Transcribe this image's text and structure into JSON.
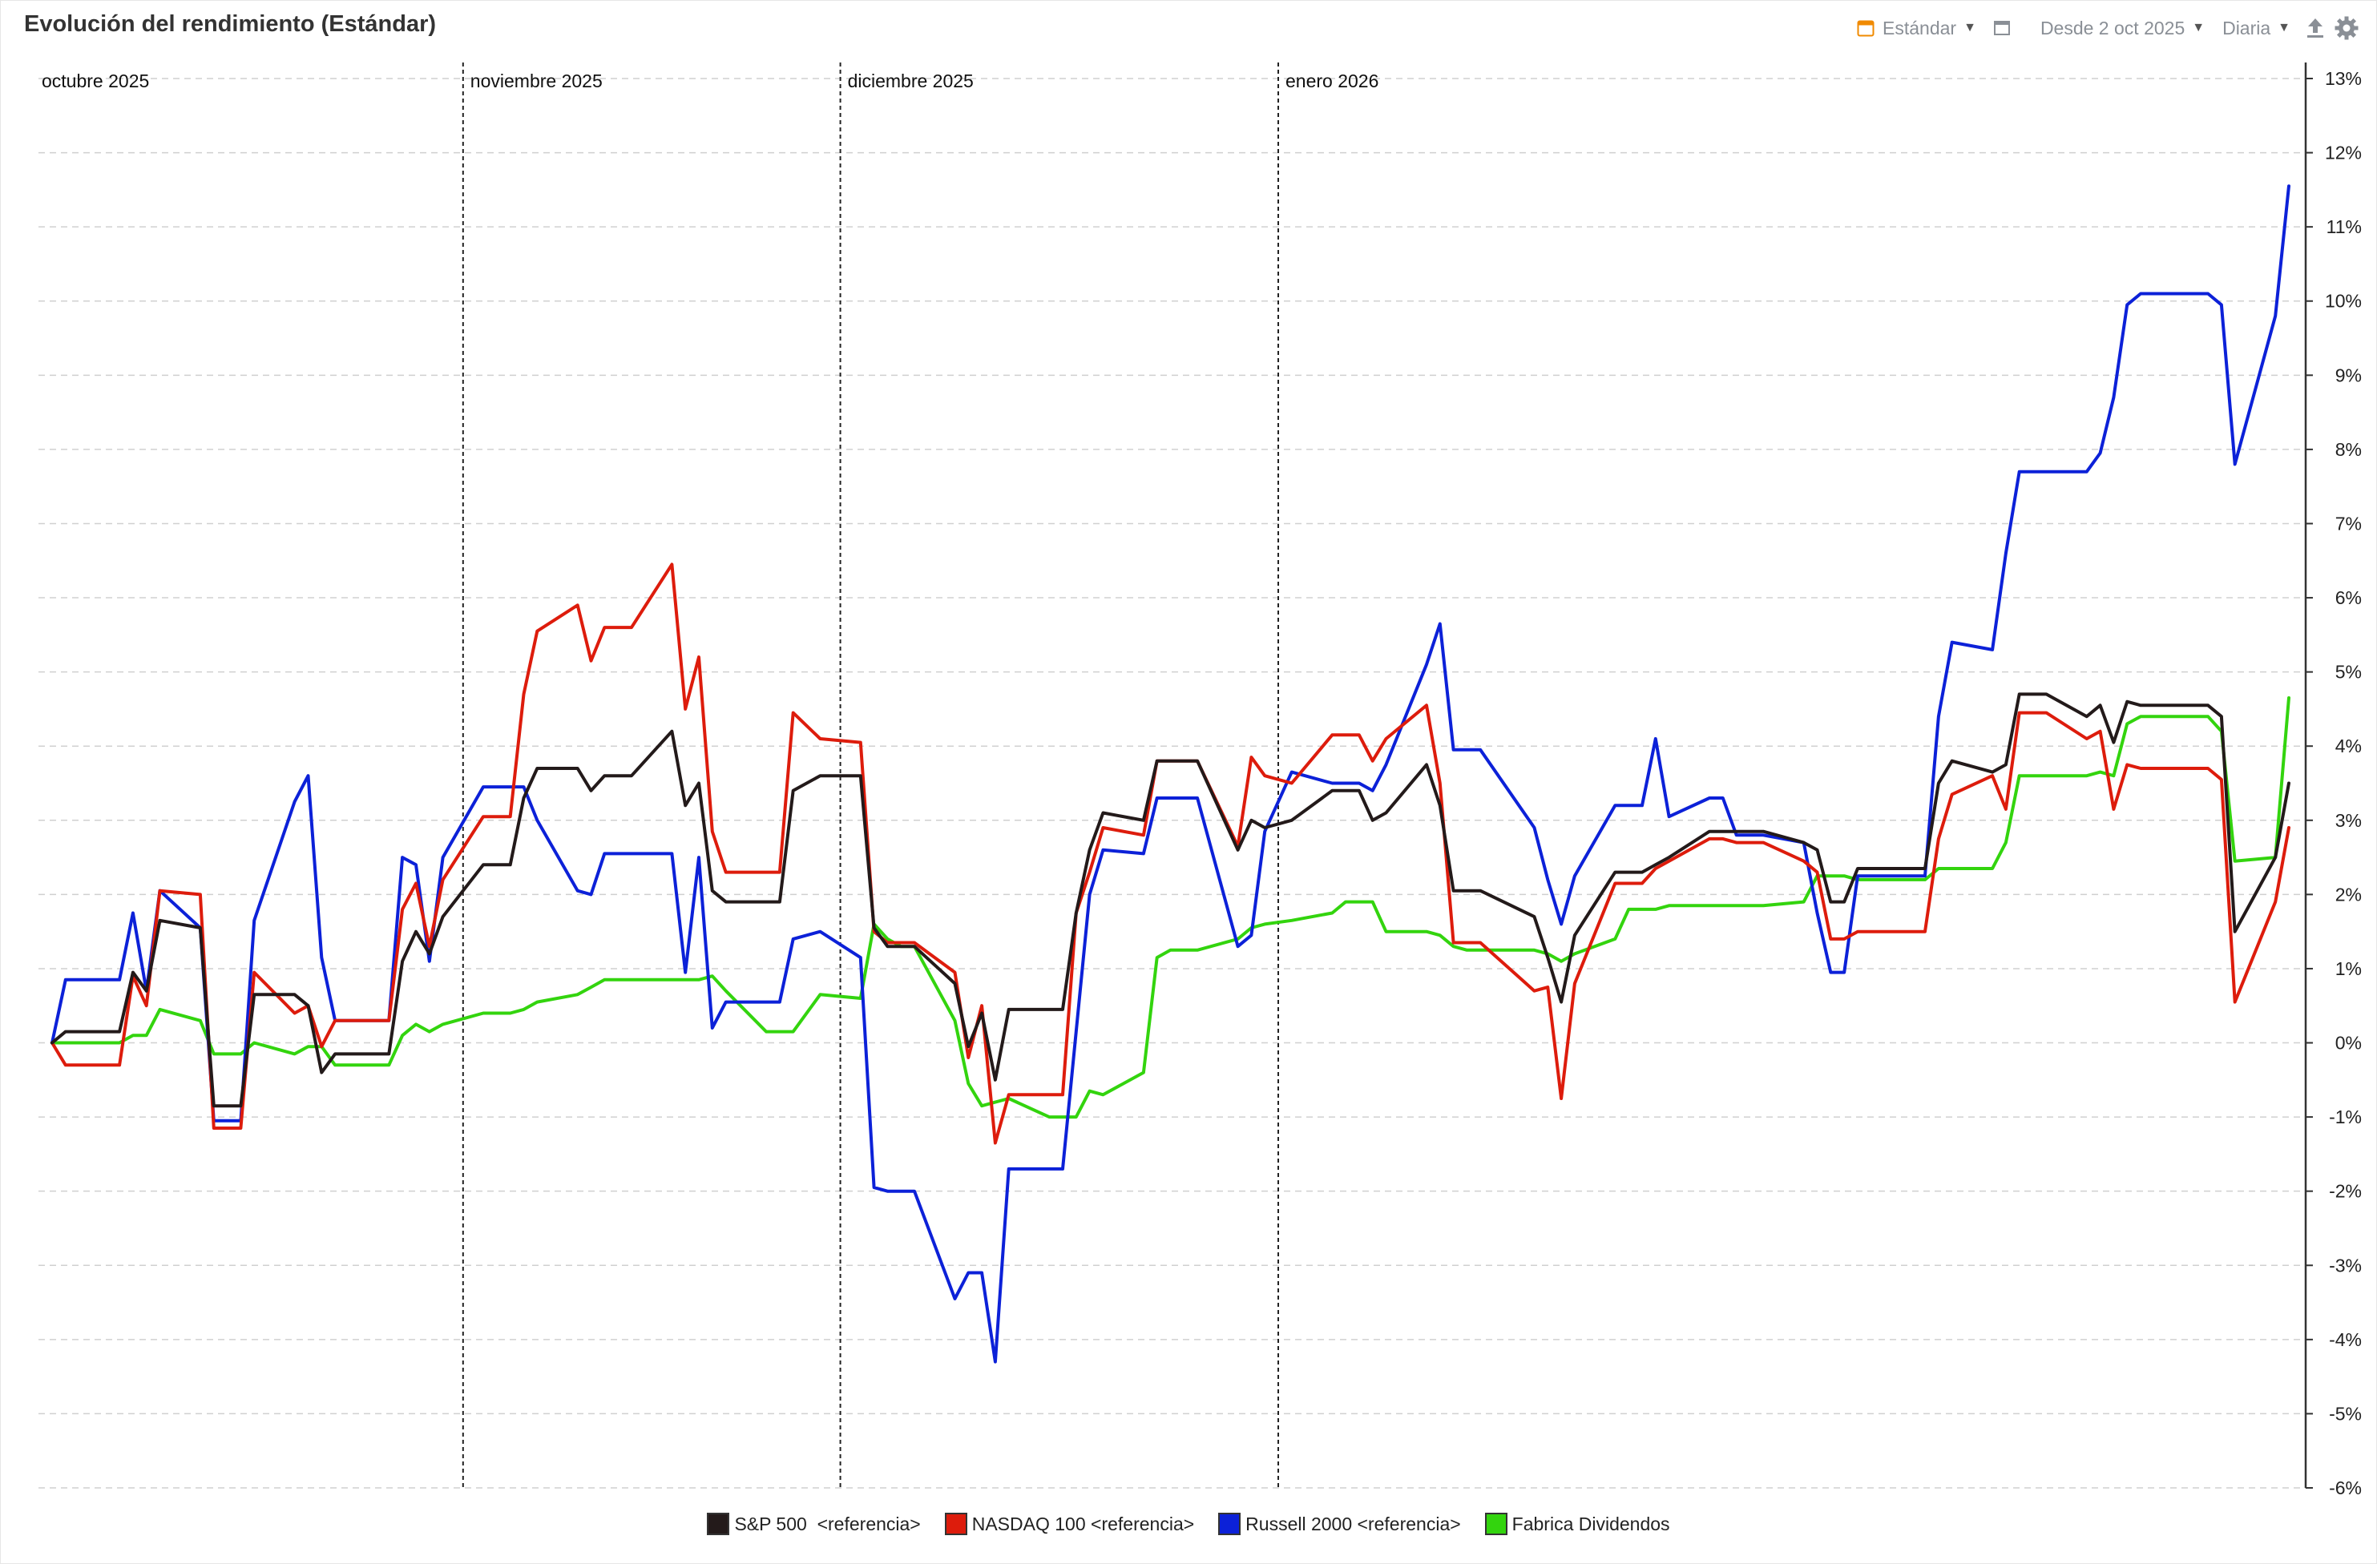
{
  "header": {
    "title": "Evolución del rendimiento (Estándar)",
    "mode_label": "Estándar",
    "range_label": "Desde 2 oct 2025",
    "interval_label": "Diaria"
  },
  "icons": [
    "calendar-icon",
    "window-icon",
    "share-icon",
    "gear-icon"
  ],
  "chart_data": {
    "type": "line",
    "month_labels": [
      "octubre 2025",
      "noviembre 2025",
      "diciembre 2025",
      "enero 2026"
    ],
    "y_ticks": [
      "13%",
      "12%",
      "11%",
      "10%",
      "9%",
      "8%",
      "7%",
      "6%",
      "5%",
      "4%",
      "3%",
      "2%",
      "1%",
      "0%",
      "-1%",
      "-2%",
      "-3%",
      "-4%",
      "-5%",
      "-6%"
    ],
    "ylim": [
      -6,
      13
    ],
    "y_axis_position": "right",
    "grid": true,
    "legend_position": "bottom",
    "x": [
      "2025-10-02",
      "2025-10-03",
      "2025-10-06",
      "2025-10-07",
      "2025-10-08",
      "2025-10-09",
      "2025-10-10",
      "2025-10-13",
      "2025-10-14",
      "2025-10-15",
      "2025-10-16",
      "2025-10-17",
      "2025-10-20",
      "2025-10-21",
      "2025-10-22",
      "2025-10-23",
      "2025-10-24",
      "2025-10-27",
      "2025-10-28",
      "2025-10-29",
      "2025-10-30",
      "2025-10-31",
      "2025-11-03",
      "2025-11-04",
      "2025-11-05",
      "2025-11-06",
      "2025-11-07",
      "2025-11-10",
      "2025-11-11",
      "2025-11-12",
      "2025-11-13",
      "2025-11-14",
      "2025-11-17",
      "2025-11-18",
      "2025-11-19",
      "2025-11-20",
      "2025-11-21",
      "2025-11-24",
      "2025-11-25",
      "2025-11-26",
      "2025-11-28",
      "2025-12-01",
      "2025-12-02",
      "2025-12-03",
      "2025-12-04",
      "2025-12-05",
      "2025-12-08",
      "2025-12-09",
      "2025-12-10",
      "2025-12-11",
      "2025-12-12",
      "2025-12-15",
      "2025-12-16",
      "2025-12-17",
      "2025-12-18",
      "2025-12-19",
      "2025-12-22",
      "2025-12-23",
      "2025-12-24",
      "2025-12-26",
      "2025-12-29",
      "2025-12-30",
      "2025-12-31",
      "2026-01-02",
      "2026-01-05",
      "2026-01-06",
      "2026-01-07",
      "2026-01-08",
      "2026-01-09",
      "2026-01-12",
      "2026-01-13",
      "2026-01-14",
      "2026-01-15",
      "2026-01-16",
      "2026-01-20",
      "2026-01-21",
      "2026-01-22",
      "2026-01-23",
      "2026-01-26",
      "2026-01-27",
      "2026-01-28",
      "2026-01-29",
      "2026-01-30",
      "2026-02-02",
      "2026-02-03",
      "2026-02-04",
      "2026-02-05",
      "2026-02-06",
      "2026-02-09",
      "2026-02-10",
      "2026-02-11",
      "2026-02-12",
      "2026-02-13",
      "2026-02-17",
      "2026-02-18",
      "2026-02-19",
      "2026-02-20",
      "2026-02-23",
      "2026-02-24",
      "2026-02-25",
      "2026-02-26",
      "2026-02-27",
      "2026-03-02",
      "2026-03-03",
      "2026-03-04",
      "2026-03-05",
      "2026-03-06",
      "2026-03-09",
      "2026-03-10",
      "2026-03-11",
      "2026-03-12",
      "2026-03-13",
      "2026-03-16",
      "2026-03-17"
    ],
    "series": [
      {
        "name": "S&P 500  <referencia>",
        "color": "#231a1a",
        "values": [
          0,
          0.15,
          0.15,
          0.15,
          0.95,
          0.7,
          1.65,
          1.55,
          -0.85,
          -0.85,
          -0.85,
          0.65,
          0.65,
          0.5,
          -0.4,
          -0.15,
          -0.15,
          -0.15,
          1.1,
          1.5,
          1.2,
          1.7,
          2.4,
          2.4,
          2.4,
          3.3,
          3.7,
          3.7,
          3.4,
          3.6,
          3.6,
          3.6,
          4.2,
          3.2,
          3.5,
          2.05,
          1.9,
          1.9,
          1.9,
          3.4,
          3.6,
          3.6,
          1.55,
          1.3,
          1.3,
          1.3,
          0.8,
          -0.05,
          0.4,
          -0.5,
          0.45,
          0.45,
          0.45,
          1.75,
          2.6,
          3.1,
          3.0,
          3.8,
          3.8,
          3.8,
          2.6,
          3.0,
          2.9,
          3.0,
          3.4,
          3.4,
          3.4,
          3.0,
          3.1,
          3.75,
          3.2,
          2.05,
          2.05,
          2.05,
          1.7,
          1.15,
          0.55,
          1.45,
          2.3,
          2.3,
          2.3,
          2.4,
          2.5,
          2.85,
          2.85,
          2.85,
          2.85,
          2.85,
          2.7,
          2.6,
          1.9,
          1.9,
          2.35,
          2.35,
          2.35,
          3.5,
          3.8,
          3.65,
          3.75,
          4.7,
          4.7,
          4.7,
          4.4,
          4.55,
          4.05,
          4.6,
          4.55,
          4.55,
          4.55,
          4.55,
          4.4,
          1.5,
          2.5,
          3.5
        ]
      },
      {
        "name": "NASDAQ 100 <referencia>",
        "color": "#dd1c0c",
        "values": [
          0,
          -0.3,
          -0.3,
          -0.3,
          0.9,
          0.5,
          2.05,
          2.0,
          -1.15,
          -1.15,
          -1.15,
          0.95,
          0.4,
          0.5,
          -0.05,
          0.3,
          0.3,
          0.3,
          1.8,
          2.15,
          1.3,
          2.2,
          3.05,
          3.05,
          3.05,
          4.7,
          5.55,
          5.9,
          5.15,
          5.6,
          5.6,
          5.6,
          6.45,
          4.5,
          5.2,
          2.85,
          2.3,
          2.3,
          2.3,
          4.45,
          4.1,
          4.05,
          1.5,
          1.35,
          1.35,
          1.35,
          0.95,
          -0.2,
          0.5,
          -1.35,
          -0.7,
          -0.7,
          -0.7,
          1.75,
          2.3,
          2.9,
          2.8,
          3.8,
          3.8,
          3.8,
          2.65,
          3.85,
          3.6,
          3.5,
          4.15,
          4.15,
          4.15,
          3.8,
          4.1,
          4.55,
          3.5,
          1.35,
          1.35,
          1.35,
          0.7,
          0.75,
          -0.75,
          0.8,
          2.15,
          2.15,
          2.15,
          2.35,
          2.45,
          2.75,
          2.75,
          2.7,
          2.7,
          2.7,
          2.45,
          2.3,
          1.4,
          1.4,
          1.5,
          1.5,
          1.5,
          2.75,
          3.35,
          3.6,
          3.15,
          4.45,
          4.45,
          4.45,
          4.1,
          4.2,
          3.15,
          3.75,
          3.7,
          3.7,
          3.7,
          3.7,
          3.55,
          0.55,
          1.9,
          2.9
        ]
      },
      {
        "name": "Russell 2000 <referencia>",
        "color": "#0c21d8",
        "values": [
          0,
          0.85,
          0.85,
          0.85,
          1.75,
          0.7,
          2.05,
          1.55,
          -1.05,
          -1.05,
          -1.05,
          1.65,
          3.25,
          3.6,
          1.15,
          0.3,
          0.3,
          0.3,
          2.5,
          2.4,
          1.1,
          2.5,
          3.45,
          3.45,
          3.45,
          3.45,
          3.0,
          2.05,
          2.0,
          2.55,
          2.55,
          2.55,
          2.55,
          0.95,
          2.5,
          0.2,
          0.55,
          0.55,
          0.55,
          1.4,
          1.5,
          1.15,
          -1.95,
          -2.0,
          -2.0,
          -2.0,
          -3.45,
          -3.1,
          -3.1,
          -4.3,
          -1.7,
          -1.7,
          -1.7,
          0.15,
          2.0,
          2.6,
          2.55,
          3.3,
          3.3,
          3.3,
          1.3,
          1.45,
          2.85,
          3.65,
          3.5,
          3.5,
          3.5,
          3.4,
          3.75,
          5.1,
          5.65,
          3.95,
          3.95,
          3.95,
          2.9,
          2.2,
          1.6,
          2.25,
          3.2,
          3.2,
          3.2,
          4.1,
          3.05,
          3.3,
          3.3,
          2.8,
          2.8,
          2.8,
          2.7,
          1.75,
          0.95,
          0.95,
          2.25,
          2.25,
          2.25,
          4.4,
          5.4,
          5.3,
          6.6,
          7.7,
          7.7,
          7.7,
          7.7,
          7.95,
          8.7,
          9.95,
          10.1,
          10.1,
          10.1,
          10.1,
          9.95,
          7.8,
          9.8,
          11.55
        ]
      },
      {
        "name": "Fabrica Dividendos",
        "color": "#33d40e",
        "values": [
          0,
          0,
          0,
          0,
          0.1,
          0.1,
          0.45,
          0.3,
          -0.15,
          -0.15,
          -0.15,
          0,
          -0.15,
          -0.05,
          -0.05,
          -0.3,
          -0.3,
          -0.3,
          0.1,
          0.25,
          0.15,
          0.25,
          0.4,
          0.4,
          0.4,
          0.45,
          0.55,
          0.65,
          0.75,
          0.85,
          0.85,
          0.85,
          0.85,
          0.85,
          0.85,
          0.9,
          0.7,
          0.15,
          0.15,
          0.15,
          0.65,
          0.6,
          1.6,
          1.4,
          1.3,
          1.3,
          0.3,
          -0.55,
          -0.85,
          -0.8,
          -0.75,
          -1.0,
          -1.0,
          -1.0,
          -0.65,
          -0.7,
          -0.4,
          1.15,
          1.25,
          1.25,
          1.4,
          1.55,
          1.6,
          1.65,
          1.75,
          1.9,
          1.9,
          1.9,
          1.5,
          1.5,
          1.45,
          1.3,
          1.25,
          1.25,
          1.25,
          1.2,
          1.1,
          1.2,
          1.4,
          1.8,
          1.8,
          1.8,
          1.85,
          1.85,
          1.85,
          1.85,
          1.85,
          1.85,
          1.9,
          2.25,
          2.25,
          2.25,
          2.2,
          2.2,
          2.2,
          2.35,
          2.35,
          2.35,
          2.7,
          3.6,
          3.6,
          3.6,
          3.6,
          3.65,
          3.6,
          4.3,
          4.4,
          4.4,
          4.4,
          4.4,
          4.2,
          2.45,
          2.5,
          4.65
        ]
      }
    ]
  }
}
